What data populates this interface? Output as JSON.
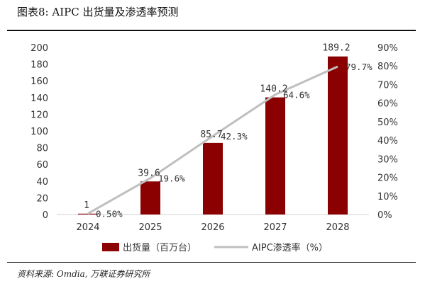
{
  "title": "图表8: AIPC 出货量及渗透率预测",
  "source": "资料来源: Omdia, 万联证券研究所",
  "chart_data": {
    "type": "bar",
    "categories": [
      "2024",
      "2025",
      "2026",
      "2027",
      "2028"
    ],
    "series": [
      {
        "name": "出货量（百万台）",
        "type": "bar",
        "axis": "left",
        "values": [
          1,
          39.6,
          85.7,
          140.2,
          189.2
        ],
        "labels": [
          "1",
          "39.6",
          "85.7",
          "140.2",
          "189.2"
        ],
        "color": "#8b0000"
      },
      {
        "name": "AIPC渗透率（%）",
        "type": "line",
        "axis": "right",
        "values": [
          0.5,
          19.6,
          42.3,
          64.6,
          79.7
        ],
        "labels": [
          "0.50%",
          "19.6%",
          "42.3%",
          "64.6%",
          "79.7%"
        ],
        "color": "#bfbfbf"
      }
    ],
    "y_left": {
      "ylim": [
        0,
        200
      ],
      "ticks": [
        "0",
        "20",
        "40",
        "60",
        "80",
        "100",
        "120",
        "140",
        "160",
        "180",
        "200"
      ]
    },
    "y_right": {
      "ylim": [
        0,
        90
      ],
      "ticks": [
        "0%",
        "10%",
        "20%",
        "30%",
        "40%",
        "50%",
        "60%",
        "70%",
        "80%",
        "90%"
      ]
    },
    "legend_position": "bottom",
    "grid": false
  }
}
